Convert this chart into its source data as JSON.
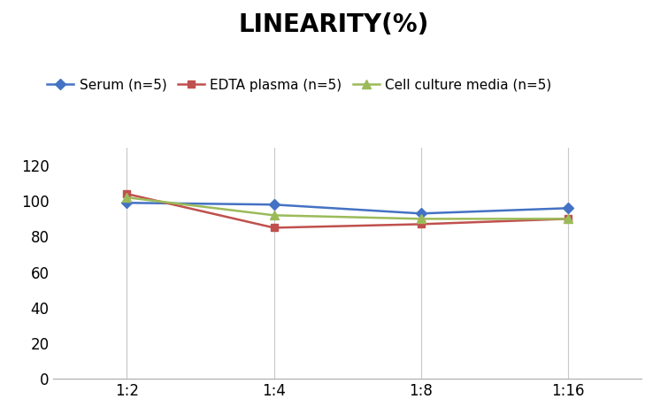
{
  "title": "LINEARITY(%)",
  "x_labels": [
    "1:2",
    "1:4",
    "1:8",
    "1:16"
  ],
  "x_positions": [
    0,
    1,
    2,
    3
  ],
  "series": [
    {
      "name": "Serum (n=5)",
      "values": [
        99,
        98,
        93,
        96
      ],
      "color": "#4472C4",
      "marker": "D",
      "linewidth": 1.8,
      "markersize": 6
    },
    {
      "name": "EDTA plasma (n=5)",
      "values": [
        104,
        85,
        87,
        90
      ],
      "color": "#C0504D",
      "marker": "s",
      "linewidth": 1.8,
      "markersize": 6
    },
    {
      "name": "Cell culture media (n=5)",
      "values": [
        102,
        92,
        90,
        90
      ],
      "color": "#9BBB59",
      "marker": "^",
      "linewidth": 1.8,
      "markersize": 7
    }
  ],
  "ylim": [
    0,
    130
  ],
  "yticks": [
    0,
    20,
    40,
    60,
    80,
    100,
    120
  ],
  "title_fontsize": 20,
  "legend_fontsize": 11,
  "tick_fontsize": 12,
  "background_color": "#ffffff",
  "grid_color": "#c8c8c8"
}
